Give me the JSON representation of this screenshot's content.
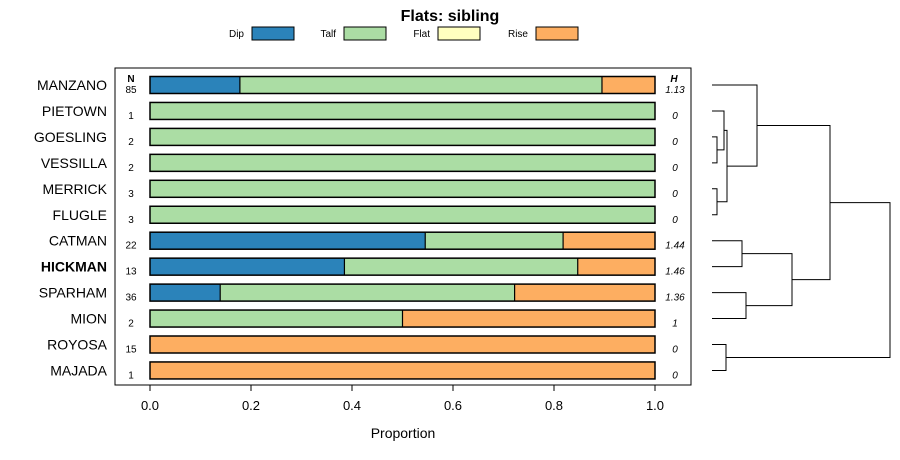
{
  "chart_data": {
    "type": "bar",
    "orientation": "horizontal",
    "stacked": true,
    "title": "Flats: sibling",
    "xlabel": "Proportion",
    "xlim": [
      0,
      1
    ],
    "xticks": [
      "0.0",
      "0.2",
      "0.4",
      "0.6",
      "0.8",
      "1.0"
    ],
    "n_header": "N",
    "h_header": "H",
    "legend_position": "top",
    "legend": [
      {
        "name": "Dip",
        "color": "#2b83ba"
      },
      {
        "name": "Talf",
        "color": "#abdda4"
      },
      {
        "name": "Flat",
        "color": "#ffffbf"
      },
      {
        "name": "Rise",
        "color": "#fdae61"
      }
    ],
    "rows": [
      {
        "label": "MANZANO",
        "bold": false,
        "n": "85",
        "h": "1.13",
        "values": [
          0.178,
          0.717,
          0.0,
          0.105
        ]
      },
      {
        "label": "PIETOWN",
        "bold": false,
        "n": "1",
        "h": "0",
        "values": [
          0.0,
          1.0,
          0.0,
          0.0
        ]
      },
      {
        "label": "GOESLING",
        "bold": false,
        "n": "2",
        "h": "0",
        "values": [
          0.0,
          1.0,
          0.0,
          0.0
        ]
      },
      {
        "label": "VESSILLA",
        "bold": false,
        "n": "2",
        "h": "0",
        "values": [
          0.0,
          1.0,
          0.0,
          0.0
        ]
      },
      {
        "label": "MERRICK",
        "bold": false,
        "n": "3",
        "h": "0",
        "values": [
          0.0,
          1.0,
          0.0,
          0.0
        ]
      },
      {
        "label": "FLUGLE",
        "bold": false,
        "n": "3",
        "h": "0",
        "values": [
          0.0,
          1.0,
          0.0,
          0.0
        ]
      },
      {
        "label": "CATMAN",
        "bold": false,
        "n": "22",
        "h": "1.44",
        "values": [
          0.545,
          0.273,
          0.0,
          0.182
        ]
      },
      {
        "label": "HICKMAN",
        "bold": true,
        "n": "13",
        "h": "1.46",
        "values": [
          0.385,
          0.462,
          0.0,
          0.153
        ]
      },
      {
        "label": "SPARHAM",
        "bold": false,
        "n": "36",
        "h": "1.36",
        "values": [
          0.139,
          0.583,
          0.0,
          0.278
        ]
      },
      {
        "label": "MION",
        "bold": false,
        "n": "2",
        "h": "1",
        "values": [
          0.0,
          0.5,
          0.0,
          0.5
        ]
      },
      {
        "label": "ROYOSA",
        "bold": false,
        "n": "15",
        "h": "0",
        "values": [
          0.0,
          0.0,
          0.0,
          1.0
        ]
      },
      {
        "label": "MAJADA",
        "bold": false,
        "n": "1",
        "h": "0",
        "values": [
          0.0,
          0.0,
          0.0,
          1.0
        ]
      }
    ],
    "dendrogram": {
      "description": "hierarchical clustering of rows",
      "merges": [
        {
          "a": "GOESLING",
          "b": "VESSILLA",
          "height": 0.05
        },
        {
          "a": "MERRICK",
          "b": "FLUGLE",
          "height": 0.05
        },
        {
          "a": "PIETOWN",
          "b": [
            "GOESLING",
            "VESSILLA"
          ],
          "height": 0.12
        },
        {
          "a": [
            "PIETOWN",
            "GOESLING",
            "VESSILLA"
          ],
          "b": [
            "MERRICK",
            "FLUGLE"
          ],
          "height": 0.15
        },
        {
          "a": "MANZANO",
          "b": [
            "PIETOWN",
            "GOESLING",
            "VESSILLA",
            "MERRICK",
            "FLUGLE"
          ],
          "height": 0.45
        },
        {
          "a": "CATMAN",
          "b": "HICKMAN",
          "height": 0.3
        },
        {
          "a": "SPARHAM",
          "b": "MION",
          "height": 0.34
        },
        {
          "a": [
            "CATMAN",
            "HICKMAN"
          ],
          "b": [
            "SPARHAM",
            "MION"
          ],
          "height": 0.8
        },
        {
          "a": [
            "MANZANO",
            "PIETOWN",
            "GOESLING",
            "VESSILLA",
            "MERRICK",
            "FLUGLE"
          ],
          "b": [
            "CATMAN",
            "HICKMAN",
            "SPARHAM",
            "MION"
          ],
          "height": 1.18
        },
        {
          "a": "ROYOSA",
          "b": "MAJADA",
          "height": 0.14
        },
        {
          "a": [
            "MANZANO",
            "PIETOWN",
            "GOESLING",
            "VESSILLA",
            "MERRICK",
            "FLUGLE",
            "CATMAN",
            "HICKMAN",
            "SPARHAM",
            "MION"
          ],
          "b": [
            "ROYOSA",
            "MAJADA"
          ],
          "height": 1.78
        }
      ]
    }
  }
}
